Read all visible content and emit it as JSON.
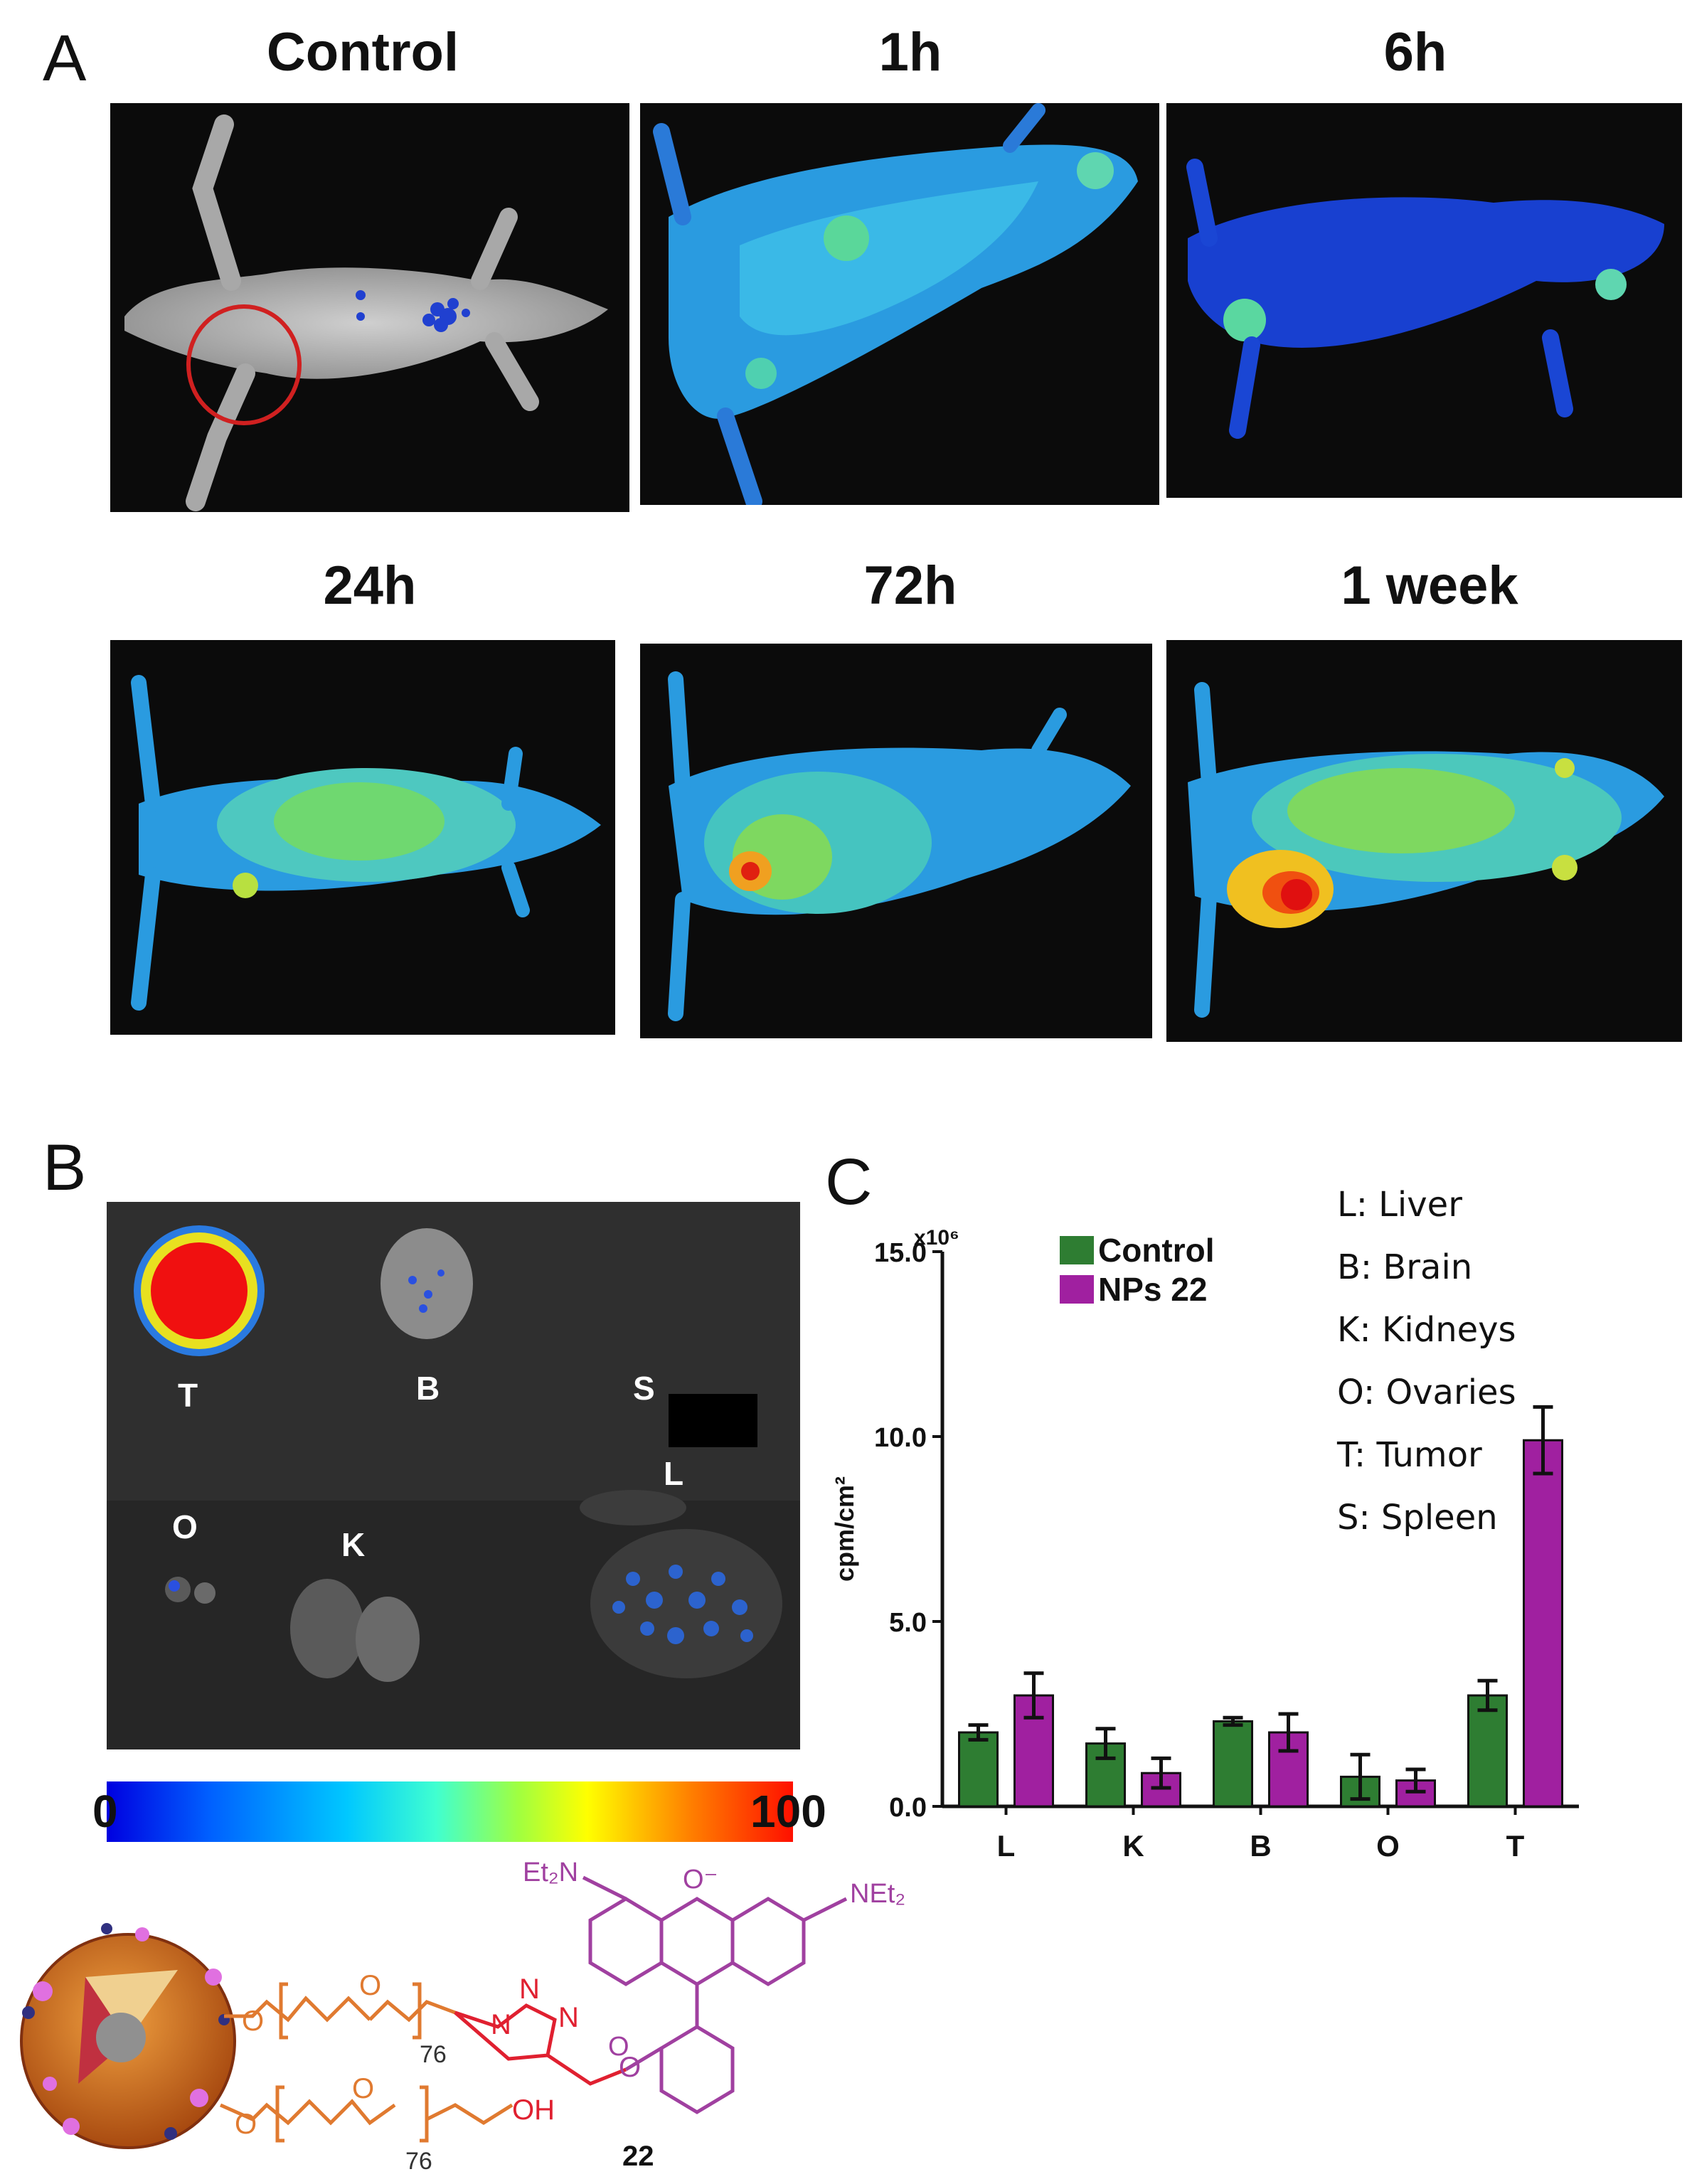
{
  "panels": {
    "a_label": "A",
    "b_label": "B",
    "c_label": "C"
  },
  "imaging": {
    "titles": [
      "Control",
      "1h",
      "6h",
      "24h",
      "72h",
      "1 week"
    ]
  },
  "organs": {
    "labels": {
      "T": "T",
      "B": "B",
      "S": "S",
      "O": "O",
      "K": "K",
      "L": "L"
    }
  },
  "colorbar": {
    "min": "0",
    "max": "100"
  },
  "chart_data": {
    "type": "bar",
    "title": "",
    "xlabel": "",
    "ylabel": "cpm/cm²",
    "y_multiplier": "x10⁶",
    "ylim": [
      0,
      15
    ],
    "yticks": [
      "0.0",
      "5.0",
      "10.0",
      "15.0"
    ],
    "categories": [
      "L",
      "K",
      "B",
      "O",
      "T"
    ],
    "series": [
      {
        "name": "Control",
        "color": "#2e7d32",
        "values": [
          2.0,
          1.7,
          2.3,
          0.8,
          3.0
        ],
        "errors": [
          0.2,
          0.4,
          0.1,
          0.6,
          0.4
        ]
      },
      {
        "name": "NPs 22",
        "color": "#a020a0",
        "values": [
          3.0,
          0.9,
          2.0,
          0.7,
          9.9
        ],
        "errors": [
          0.6,
          0.4,
          0.5,
          0.3,
          0.9
        ]
      }
    ],
    "legend_position": "top-left",
    "key": [
      "L: Liver",
      "B: Brain",
      "K: Kidneys",
      "O: Ovaries",
      "T: Tumor",
      "S: Spleen"
    ]
  },
  "structure": {
    "left_group": "Et₂N",
    "right_group": "NEt₂",
    "oxygen": "O⁻",
    "repeat_n": "76",
    "triazole_n1": "N",
    "triazole_n2": "N",
    "triazole_n3": "N",
    "o_label": "O",
    "oh_label": "OH",
    "compound": "22",
    "colors": {
      "dye": "#a040a0",
      "linker": "#e07a30",
      "triazole": "#e02030"
    }
  }
}
